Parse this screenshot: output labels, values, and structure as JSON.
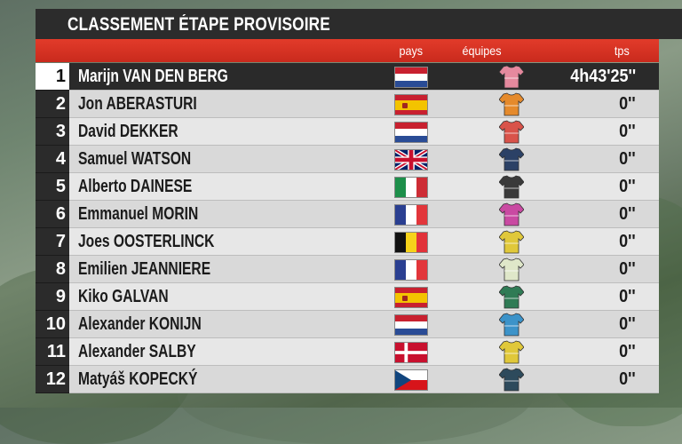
{
  "title": "CLASSEMENT ÉTAPE PROVISOIRE",
  "headers": {
    "pays": "pays",
    "equipes": "équipes",
    "tps": "tps"
  },
  "rows": [
    {
      "rank": "1",
      "name": "Marijn VAN DEN BERG",
      "flag": "netherlands-flag-icon",
      "jersey_color": "#e5899e",
      "time": "4h43'25''"
    },
    {
      "rank": "2",
      "name": "Jon ABERASTURI",
      "flag": "spain-flag-icon",
      "jersey_color": "#e58a2c",
      "time": "0''"
    },
    {
      "rank": "3",
      "name": "David DEKKER",
      "flag": "netherlands-flag-icon",
      "jersey_color": "#d9534a",
      "time": "0''"
    },
    {
      "rank": "4",
      "name": "Samuel WATSON",
      "flag": "united-kingdom-flag-icon",
      "jersey_color": "#2b4166",
      "time": "0''"
    },
    {
      "rank": "5",
      "name": "Alberto DAINESE",
      "flag": "italy-flag-icon",
      "jersey_color": "#3a3a3a",
      "time": "0''"
    },
    {
      "rank": "6",
      "name": "Emmanuel MORIN",
      "flag": "france-flag-icon",
      "jersey_color": "#c94aa2",
      "time": "0''"
    },
    {
      "rank": "7",
      "name": "Joes OOSTERLINCK",
      "flag": "belgium-flag-icon",
      "jersey_color": "#e0c83a",
      "time": "0''"
    },
    {
      "rank": "8",
      "name": "Emilien JEANNIERE",
      "flag": "france-flag-icon",
      "jersey_color": "#dfe7c9",
      "time": "0''"
    },
    {
      "rank": "9",
      "name": "Kiko GALVAN",
      "flag": "spain-flag-icon",
      "jersey_color": "#2f7b55",
      "time": "0''"
    },
    {
      "rank": "10",
      "name": "Alexander KONIJN",
      "flag": "netherlands-flag-icon",
      "jersey_color": "#3c93c9",
      "time": "0''"
    },
    {
      "rank": "11",
      "name": "Alexander SALBY",
      "flag": "denmark-flag-icon",
      "jersey_color": "#e0c83a",
      "time": "0''"
    },
    {
      "rank": "12",
      "name": "Matyáš KOPECKÝ",
      "flag": "czech-flag-icon",
      "jersey_color": "#2d4a5c",
      "time": "0''"
    }
  ],
  "colors": {
    "header_red": "#d8301f",
    "dark": "#2b2b2b",
    "row_light": "#e7e7e7"
  }
}
